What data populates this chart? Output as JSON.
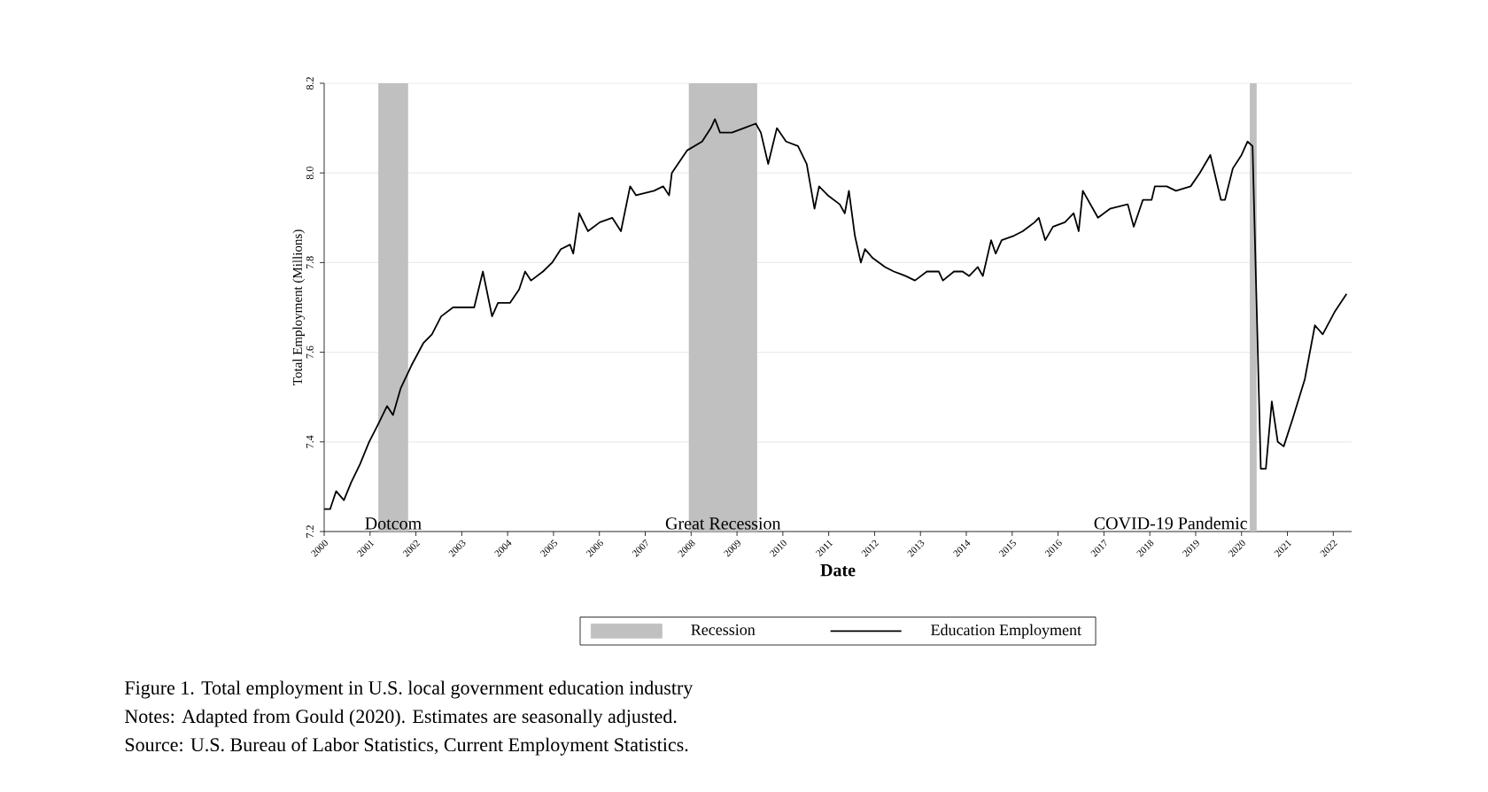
{
  "chart_data": {
    "type": "line",
    "title": "Figure 1. Total employment in U.S. local government education industry",
    "xlabel": "Date",
    "ylabel": "Total Employment (Millions)",
    "annotations": [
      "Recession",
      "Notes: Adapted from Gould (2020). Estimates are seasonally adjusted.",
      "Source: U.S. Bureau of Labor Statistics, Current Employment Statistics."
    ],
    "x": [
      2000.0,
      2000.13,
      2000.26,
      2000.43,
      2000.59,
      2000.78,
      2000.98,
      2001.18,
      2001.37,
      2001.5,
      2001.67,
      2001.9,
      2002.16,
      2002.35,
      2002.55,
      2002.81,
      2003.27,
      2003.46,
      2003.66,
      2003.79,
      2004.05,
      2004.25,
      2004.38,
      2004.51,
      2004.77,
      2004.97,
      2005.16,
      2005.36,
      2005.43,
      2005.56,
      2005.75,
      2006.01,
      2006.28,
      2006.47,
      2006.67,
      2006.8,
      2007.19,
      2007.39,
      2007.52,
      2007.58,
      2007.91,
      2008.24,
      2008.43,
      2008.52,
      2008.63,
      2008.89,
      2009.15,
      2009.41,
      2009.52,
      2009.68,
      2009.87,
      2010.07,
      2010.33,
      2010.52,
      2010.69,
      2010.79,
      2010.98,
      2011.24,
      2011.35,
      2011.44,
      2011.57,
      2011.7,
      2011.79,
      2011.96,
      2012.23,
      2012.42,
      2012.68,
      2012.88,
      2013.14,
      2013.4,
      2013.49,
      2013.73,
      2013.92,
      2014.06,
      2014.25,
      2014.36,
      2014.54,
      2014.64,
      2014.77,
      2015.04,
      2015.23,
      2015.49,
      2015.58,
      2015.72,
      2015.89,
      2016.15,
      2016.34,
      2016.45,
      2016.54,
      2016.87,
      2017.13,
      2017.52,
      2017.65,
      2017.85,
      2018.04,
      2018.11,
      2018.37,
      2018.57,
      2018.89,
      2019.09,
      2019.32,
      2019.55,
      2019.64,
      2019.81,
      2020.0,
      2020.13,
      2020.24,
      2020.42,
      2020.53,
      2020.66,
      2020.79,
      2020.92,
      2021.11,
      2021.38,
      2021.6,
      2021.77,
      2022.03,
      2022.29
    ],
    "series": [
      {
        "name": "Education Employment",
        "color": "#000000",
        "values": [
          7.25,
          7.25,
          7.29,
          7.27,
          7.31,
          7.35,
          7.4,
          7.44,
          7.48,
          7.46,
          7.52,
          7.57,
          7.62,
          7.64,
          7.68,
          7.7,
          7.7,
          7.78,
          7.68,
          7.71,
          7.71,
          7.74,
          7.78,
          7.76,
          7.78,
          7.8,
          7.83,
          7.84,
          7.82,
          7.91,
          7.87,
          7.89,
          7.9,
          7.87,
          7.97,
          7.95,
          7.96,
          7.97,
          7.95,
          8.0,
          8.05,
          8.07,
          8.1,
          8.12,
          8.09,
          8.09,
          8.1,
          8.11,
          8.09,
          8.02,
          8.1,
          8.07,
          8.06,
          8.02,
          7.92,
          7.97,
          7.95,
          7.93,
          7.91,
          7.96,
          7.86,
          7.8,
          7.83,
          7.81,
          7.79,
          7.78,
          7.77,
          7.76,
          7.78,
          7.78,
          7.76,
          7.78,
          7.78,
          7.77,
          7.79,
          7.77,
          7.85,
          7.82,
          7.85,
          7.86,
          7.87,
          7.89,
          7.9,
          7.85,
          7.88,
          7.89,
          7.91,
          7.87,
          7.96,
          7.9,
          7.92,
          7.93,
          7.88,
          7.94,
          7.94,
          7.97,
          7.97,
          7.96,
          7.97,
          8.0,
          8.04,
          7.94,
          7.94,
          8.01,
          8.04,
          8.07,
          8.06,
          7.34,
          7.34,
          7.49,
          7.4,
          7.39,
          7.45,
          7.54,
          7.66,
          7.64,
          7.69,
          7.73
        ]
      }
    ],
    "bands": [
      {
        "axis": "x",
        "from": 2001.18,
        "to": 2001.83,
        "label": "Dotcom",
        "color": "#c0c0c0"
      },
      {
        "axis": "x",
        "from": 2007.95,
        "to": 2009.44,
        "label": "Great Recession",
        "color": "#c0c0c0"
      },
      {
        "axis": "x",
        "from": 2020.18,
        "to": 2020.33,
        "label": "COVID-19 Pandemic",
        "color": "#c0c0c0"
      }
    ],
    "xlim": [
      2000,
      2022.4
    ],
    "xticks": [
      2000,
      2001,
      2002,
      2003,
      2004,
      2005,
      2006,
      2007,
      2008,
      2009,
      2010,
      2011,
      2012,
      2013,
      2014,
      2015,
      2016,
      2017,
      2018,
      2019,
      2020,
      2021,
      2022
    ],
    "ylim": [
      7.2,
      8.2
    ],
    "yticks": [
      7.2,
      7.4,
      7.6,
      7.8,
      {
        "value": 8,
        "label": "8.0"
      },
      8.2
    ],
    "grid": "y",
    "legend": "bottom",
    "line_style": "solid",
    "marker": "none"
  }
}
